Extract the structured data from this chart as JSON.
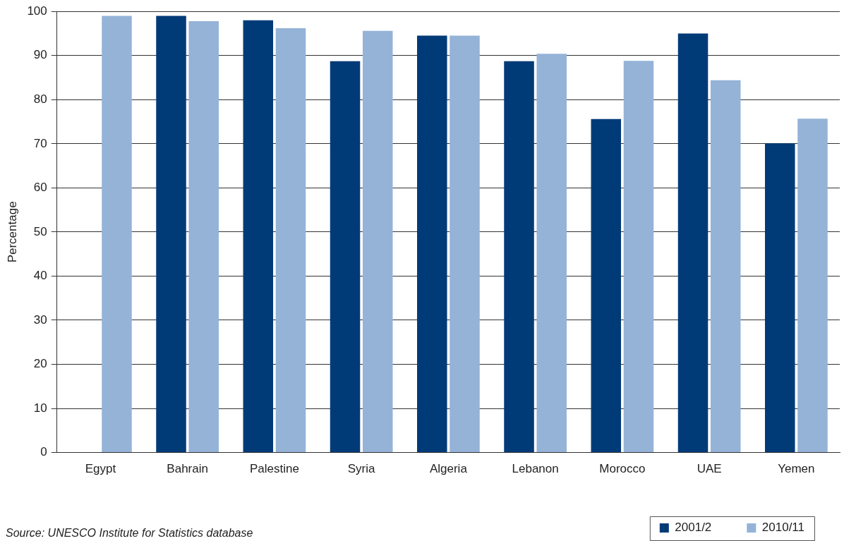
{
  "chart_data": {
    "type": "bar",
    "ylabel": "Percentage",
    "categories": [
      "Egypt",
      "Bahrain",
      "Palestine",
      "Syria",
      "Algeria",
      "Lebanon",
      "Morocco",
      "UAE",
      "Yemen"
    ],
    "series": [
      {
        "name": "2001/2",
        "color": "#003b77",
        "values": [
          null,
          99,
          98,
          88.7,
          94.5,
          88.7,
          75.6,
          95,
          70.1
        ]
      },
      {
        "name": "2010/11",
        "color": "#95b3d7",
        "values": [
          99,
          97.8,
          96.2,
          95.6,
          94.5,
          90.4,
          88.8,
          84.4,
          75.7
        ]
      }
    ],
    "ylim": [
      0,
      100
    ],
    "yticks": [
      0,
      10,
      20,
      30,
      40,
      50,
      60,
      70,
      80,
      90,
      100
    ],
    "grid": "y",
    "legend": "bottom right",
    "annotations": [
      "Source: UNESCO Institute for Statistics database"
    ]
  }
}
